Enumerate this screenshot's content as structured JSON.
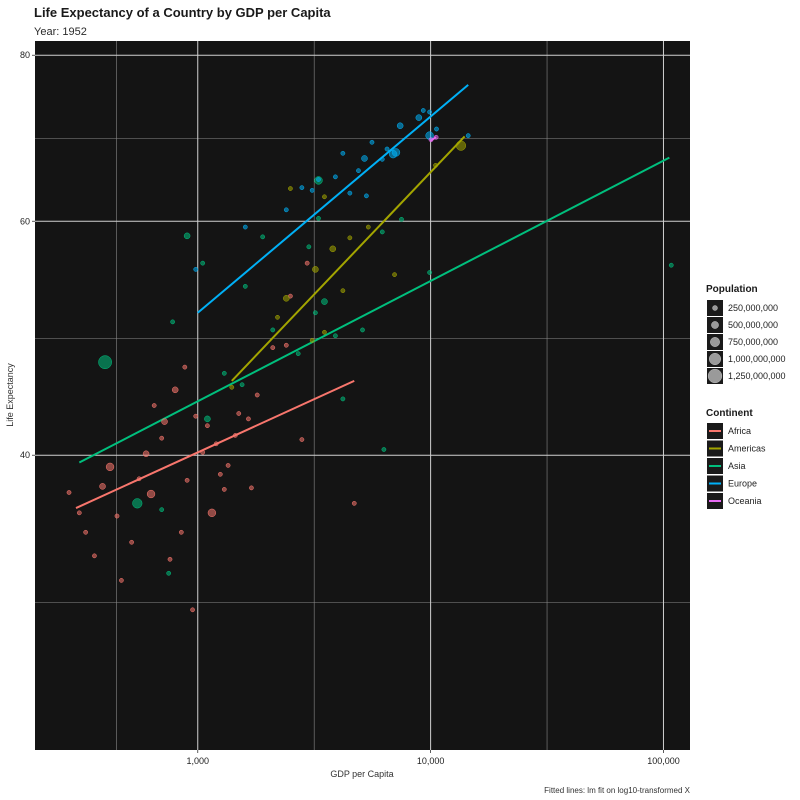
{
  "chart_data": {
    "type": "scatter",
    "title": "Life Expectancy of a Country by GDP per Capita",
    "subtitle": "Year: 1952",
    "xlabel": "GDP per Capita",
    "ylabel": "Life Expectancy",
    "caption": "Fitted lines: lm fit on log10-transformed X",
    "x_scale": "log10",
    "y_scale": "log10",
    "xlim": [
      200,
      130000
    ],
    "ylim": [
      24,
      82
    ],
    "x_ticks": [
      1000,
      10000,
      100000
    ],
    "x_tick_labels": [
      "1,000",
      "10,000",
      "100,000"
    ],
    "y_ticks": [
      40,
      60,
      80
    ],
    "y_tick_labels": [
      "40",
      "60",
      "80"
    ],
    "background": "#141414",
    "grid": true,
    "size_legend": {
      "title": "Population",
      "labels": [
        "250,000,000",
        "500,000,000",
        "750,000,000",
        "1,000,000,000",
        "1,250,000,000"
      ]
    },
    "color_legend": {
      "title": "Continent",
      "items": [
        {
          "name": "Africa",
          "color": "#f8766d"
        },
        {
          "name": "Americas",
          "color": "#a3a500"
        },
        {
          "name": "Asia",
          "color": "#00bf7d"
        },
        {
          "name": "Europe",
          "color": "#00b0f6"
        },
        {
          "name": "Oceania",
          "color": "#e76bf3"
        }
      ]
    },
    "fit_lines": [
      {
        "name": "Africa",
        "x": [
          300,
          4700
        ],
        "y": [
          36.5,
          45.5
        ]
      },
      {
        "name": "Americas",
        "x": [
          1400,
          14000
        ],
        "y": [
          45.5,
          69.5
        ]
      },
      {
        "name": "Asia",
        "x": [
          310,
          106000
        ],
        "y": [
          39.5,
          67
        ]
      },
      {
        "name": "Europe",
        "x": [
          1000,
          14500
        ],
        "y": [
          51.2,
          76
        ]
      },
      {
        "name": "Oceania",
        "x": [
          9990,
          10560
        ],
        "y": [
          69.0,
          69.4
        ]
      }
    ],
    "series": [
      {
        "name": "Africa",
        "points": [
          [
            280,
            37.5,
            1
          ],
          [
            310,
            36.2,
            1
          ],
          [
            330,
            35,
            1
          ],
          [
            360,
            33.6,
            1
          ],
          [
            390,
            37.9,
            2
          ],
          [
            420,
            39.2,
            3
          ],
          [
            450,
            36,
            1
          ],
          [
            470,
            32.2,
            1
          ],
          [
            520,
            34.4,
            1
          ],
          [
            560,
            38.4,
            1
          ],
          [
            600,
            40.1,
            2
          ],
          [
            630,
            37.4,
            3
          ],
          [
            650,
            43.6,
            1
          ],
          [
            700,
            41.2,
            1
          ],
          [
            720,
            42.4,
            2
          ],
          [
            760,
            33.4,
            1
          ],
          [
            800,
            44.8,
            2
          ],
          [
            850,
            35,
            1
          ],
          [
            880,
            46.6,
            1
          ],
          [
            900,
            38.3,
            1
          ],
          [
            950,
            30.6,
            1
          ],
          [
            980,
            42.8,
            1
          ],
          [
            1050,
            40.2,
            1
          ],
          [
            1100,
            42.1,
            1
          ],
          [
            1150,
            36.2,
            3
          ],
          [
            1200,
            40.8,
            1
          ],
          [
            1250,
            38.7,
            1
          ],
          [
            1300,
            37.7,
            1
          ],
          [
            1350,
            39.3,
            1
          ],
          [
            1450,
            41.4,
            1
          ],
          [
            1500,
            43,
            1
          ],
          [
            1650,
            42.6,
            1
          ],
          [
            1700,
            37.8,
            1
          ],
          [
            1800,
            44.4,
            1
          ],
          [
            2100,
            48.2,
            1
          ],
          [
            2400,
            48.4,
            1
          ],
          [
            2500,
            52.7,
            1
          ],
          [
            2800,
            41.1,
            1
          ],
          [
            2950,
            55.8,
            1
          ],
          [
            4700,
            36.8,
            1
          ]
        ]
      },
      {
        "name": "Americas",
        "points": [
          [
            1400,
            45,
            1
          ],
          [
            2200,
            50.8,
            1
          ],
          [
            2400,
            52.5,
            2
          ],
          [
            2500,
            63.5,
            1
          ],
          [
            3100,
            48.8,
            1
          ],
          [
            3200,
            55.2,
            2
          ],
          [
            3500,
            49.5,
            1
          ],
          [
            3500,
            62.6,
            1
          ],
          [
            3800,
            57.2,
            2
          ],
          [
            4200,
            53.2,
            1
          ],
          [
            4500,
            58.3,
            1
          ],
          [
            5400,
            59.4,
            1
          ],
          [
            7000,
            54.7,
            1
          ],
          [
            10500,
            66.1,
            1
          ],
          [
            13500,
            68.4,
            4
          ]
        ]
      },
      {
        "name": "Asia",
        "points": [
          [
            400,
            47,
            6
          ],
          [
            550,
            36.8,
            4
          ],
          [
            700,
            36.4,
            1
          ],
          [
            750,
            32.6,
            1
          ],
          [
            780,
            50.4,
            1
          ],
          [
            900,
            58.5,
            2
          ],
          [
            1050,
            55.8,
            1
          ],
          [
            1100,
            42.6,
            2
          ],
          [
            1300,
            46.1,
            1
          ],
          [
            1550,
            45.2,
            1
          ],
          [
            1600,
            53.6,
            1
          ],
          [
            1900,
            58.4,
            1
          ],
          [
            2100,
            49.7,
            1
          ],
          [
            2700,
            47.7,
            1
          ],
          [
            3000,
            57.4,
            1
          ],
          [
            3200,
            51.2,
            1
          ],
          [
            3300,
            60.3,
            1
          ],
          [
            3300,
            64.4,
            3
          ],
          [
            3500,
            52.2,
            2
          ],
          [
            3900,
            49.2,
            1
          ],
          [
            4200,
            44.1,
            1
          ],
          [
            5100,
            49.7,
            1
          ],
          [
            6200,
            58.9,
            1
          ],
          [
            6300,
            40.4,
            1
          ],
          [
            7500,
            60.2,
            1
          ],
          [
            9900,
            54.9,
            1
          ],
          [
            108000,
            55.6,
            1
          ]
        ]
      },
      {
        "name": "Europe",
        "points": [
          [
            980,
            55.2,
            1
          ],
          [
            1600,
            59.4,
            1
          ],
          [
            2400,
            61.2,
            1
          ],
          [
            2800,
            63.6,
            1
          ],
          [
            3100,
            63.3,
            1
          ],
          [
            3300,
            64.5,
            1
          ],
          [
            3900,
            64.8,
            1
          ],
          [
            4200,
            67.5,
            1
          ],
          [
            4500,
            63,
            1
          ],
          [
            4900,
            65.5,
            1
          ],
          [
            5200,
            66.9,
            2
          ],
          [
            5300,
            62.7,
            1
          ],
          [
            5600,
            68.8,
            1
          ],
          [
            6200,
            66.8,
            1
          ],
          [
            6500,
            68,
            1
          ],
          [
            6900,
            67.4,
            3
          ],
          [
            7100,
            67.6,
            3
          ],
          [
            7400,
            70.8,
            2
          ],
          [
            8900,
            71.8,
            2
          ],
          [
            9300,
            72.7,
            1
          ],
          [
            9900,
            69.6,
            3
          ],
          [
            9900,
            72.5,
            1
          ],
          [
            10600,
            70.4,
            1
          ],
          [
            14500,
            69.6,
            1
          ]
        ]
      },
      {
        "name": "Oceania",
        "points": [
          [
            10040,
            69.1,
            1
          ],
          [
            10560,
            69.4,
            1
          ]
        ]
      }
    ]
  }
}
